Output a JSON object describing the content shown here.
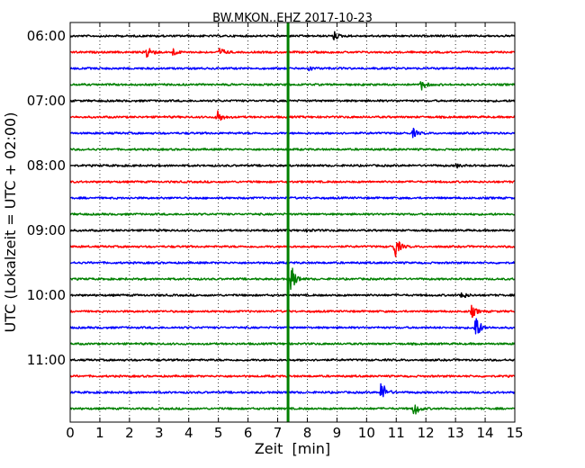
{
  "chart_data": {
    "type": "line",
    "title": "BW.MKON..EHZ 2017-10-23",
    "xlabel": "Zeit  [min]",
    "ylabel": "UTC (Lokalzeit = UTC + 02:00)",
    "xlim": [
      0,
      15
    ],
    "xticks": [
      "0",
      "1",
      "2",
      "3",
      "4",
      "5",
      "6",
      "7",
      "8",
      "9",
      "10",
      "11",
      "12",
      "13",
      "14",
      "15"
    ],
    "yticks": [
      "06:00",
      "07:00",
      "08:00",
      "09:00",
      "10:00",
      "11:00"
    ],
    "row_start": "06:00",
    "row_interval_min": 15,
    "row_count": 24,
    "colors": [
      "#000000",
      "#ff0000",
      "#0000ff",
      "#008000"
    ],
    "grid": true,
    "marker": {
      "x": 7.35,
      "color": "#008000"
    },
    "events": [
      {
        "row": 0,
        "x": 8.9,
        "amp": 0.3
      },
      {
        "row": 1,
        "x": 2.6,
        "amp": 0.65
      },
      {
        "row": 1,
        "x": 3.45,
        "amp": 0.3
      },
      {
        "row": 1,
        "x": 5.05,
        "amp": 0.35
      },
      {
        "row": 2,
        "x": 8.05,
        "amp": 0.15
      },
      {
        "row": 3,
        "x": 11.85,
        "amp": 0.4
      },
      {
        "row": 5,
        "x": 4.95,
        "amp": 0.6
      },
      {
        "row": 6,
        "x": 11.55,
        "amp": 0.35
      },
      {
        "row": 8,
        "x": 13.05,
        "amp": 0.12
      },
      {
        "row": 12,
        "x": 8.0,
        "amp": 0.12
      },
      {
        "row": 13,
        "x": 10.95,
        "amp": 0.9
      },
      {
        "row": 15,
        "x": 7.45,
        "amp": 1.1
      },
      {
        "row": 16,
        "x": 13.2,
        "amp": 0.3
      },
      {
        "row": 17,
        "x": 13.55,
        "amp": 0.45
      },
      {
        "row": 18,
        "x": 13.65,
        "amp": 1.2
      },
      {
        "row": 22,
        "x": 10.5,
        "amp": 0.9
      },
      {
        "row": 23,
        "x": 11.6,
        "amp": 0.6
      }
    ]
  }
}
